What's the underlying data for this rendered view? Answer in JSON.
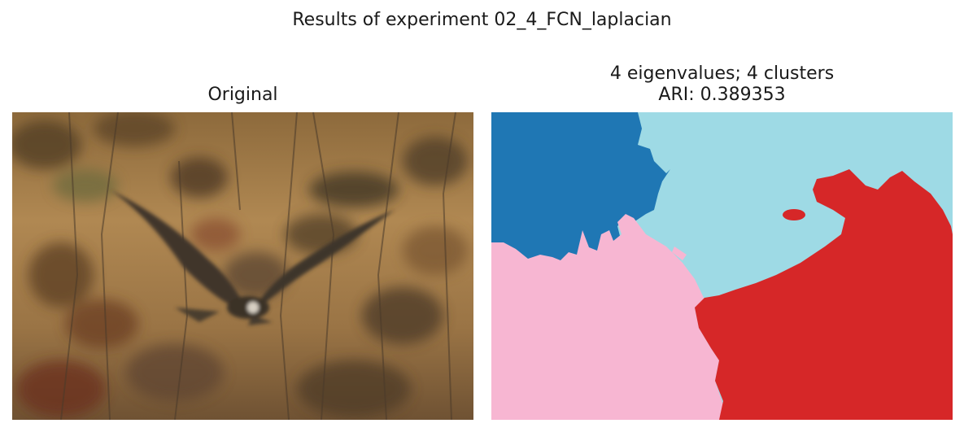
{
  "figure": {
    "title": "Results of experiment 02_4_FCN_laplacian"
  },
  "panels": {
    "original": {
      "title": "Original"
    },
    "segmentation": {
      "title_line1": "4 eigenvalues; 4 clusters",
      "title_line2": "ARI: 0.389353"
    }
  },
  "colors": {
    "cluster_blue": "#1f77b4",
    "cluster_lightblue": "#9edae5",
    "cluster_pink": "#f7b6d2",
    "cluster_red": "#d62728",
    "photo_background": "#a8824e",
    "bird": "#3a3128"
  },
  "legend": {
    "clusters": 4,
    "eigenvalues": 4,
    "ari": 0.389353
  }
}
